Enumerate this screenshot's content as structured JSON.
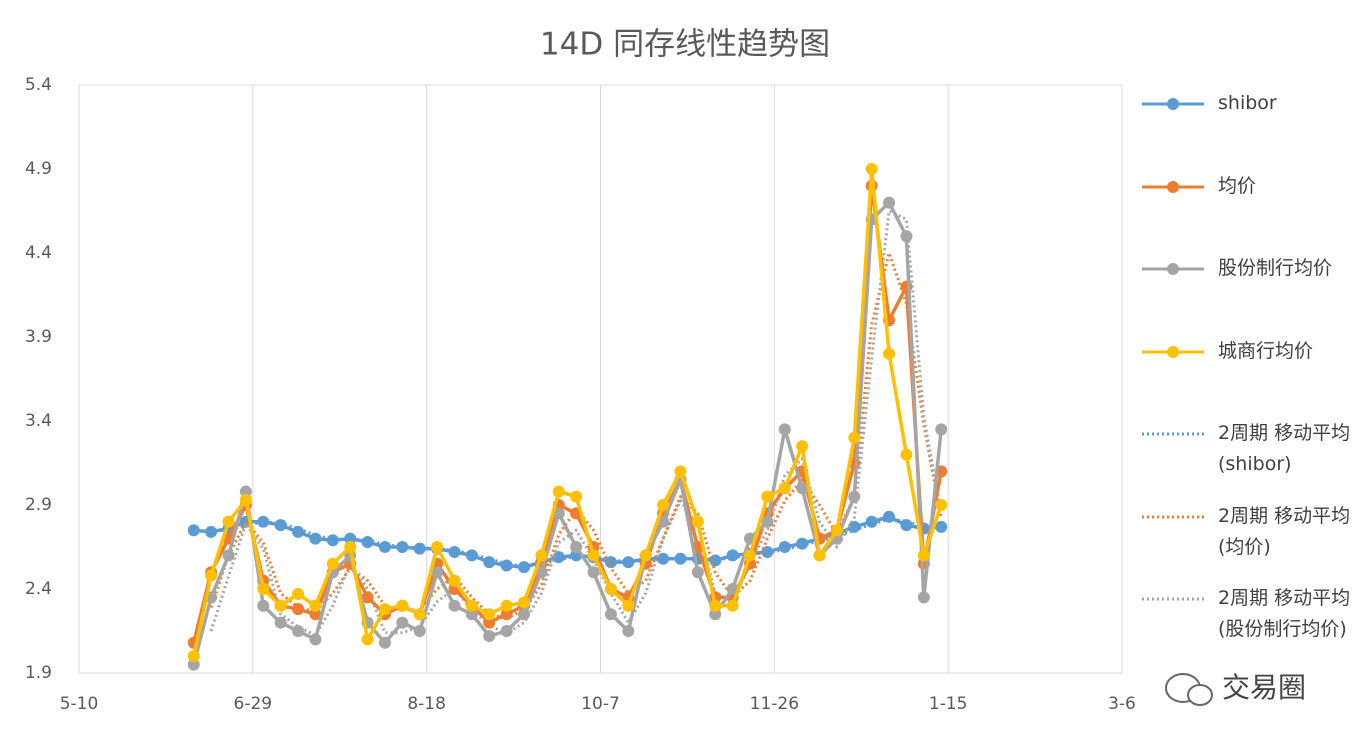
{
  "chart_data": {
    "type": "line",
    "title": "14D 同存线性趋势图",
    "x": [
      "6-12",
      "6-17",
      "6-22",
      "6-27",
      "7-2",
      "7-7",
      "7-12",
      "7-17",
      "7-22",
      "7-27",
      "8-1",
      "8-6",
      "8-11",
      "8-16",
      "8-21",
      "8-26",
      "8-31",
      "9-5",
      "9-10",
      "9-15",
      "9-20",
      "9-25",
      "9-30",
      "10-5",
      "10-10",
      "10-15",
      "10-20",
      "10-25",
      "10-30",
      "11-4",
      "11-9",
      "11-14",
      "11-19",
      "11-24",
      "11-29",
      "12-4",
      "12-9",
      "12-14",
      "12-19",
      "12-24",
      "12-29",
      "1-3",
      "1-8",
      "1-13"
    ],
    "xlim": [
      "5-10",
      "3-6"
    ],
    "xticks": [
      "5-10",
      "6-29",
      "8-18",
      "10-7",
      "11-26",
      "1-15",
      "3-6"
    ],
    "ylim": [
      1.9,
      5.4
    ],
    "yticks": [
      1.9,
      2.4,
      2.9,
      3.4,
      3.9,
      4.4,
      4.9,
      5.4
    ],
    "xgrid": true,
    "series": [
      {
        "name": "shibor",
        "color": "#5b9bd5",
        "style": "solid",
        "values": [
          2.75,
          2.74,
          2.76,
          2.8,
          2.8,
          2.78,
          2.74,
          2.7,
          2.69,
          2.7,
          2.68,
          2.65,
          2.65,
          2.64,
          2.64,
          2.62,
          2.6,
          2.56,
          2.54,
          2.53,
          2.56,
          2.59,
          2.6,
          2.59,
          2.56,
          2.56,
          2.58,
          2.58,
          2.58,
          2.58,
          2.57,
          2.6,
          2.61,
          2.62,
          2.65,
          2.67,
          2.7,
          2.73,
          2.77,
          2.8,
          2.83,
          2.78,
          2.76,
          2.77
        ]
      },
      {
        "name": "均价",
        "color": "#ed7d31",
        "style": "solid",
        "values": [
          2.08,
          2.5,
          2.7,
          2.9,
          2.45,
          2.3,
          2.28,
          2.25,
          2.5,
          2.55,
          2.35,
          2.25,
          2.3,
          2.25,
          2.55,
          2.4,
          2.3,
          2.2,
          2.25,
          2.3,
          2.55,
          2.9,
          2.85,
          2.65,
          2.4,
          2.35,
          2.55,
          2.85,
          3.05,
          2.65,
          2.35,
          2.35,
          2.55,
          2.85,
          3.0,
          3.1,
          2.7,
          2.75,
          3.15,
          4.8,
          4.0,
          4.2,
          2.55,
          3.1
        ]
      },
      {
        "name": "股份制行均价",
        "color": "#a5a5a5",
        "style": "solid",
        "values": [
          1.95,
          2.35,
          2.6,
          2.98,
          2.3,
          2.2,
          2.15,
          2.1,
          2.5,
          2.6,
          2.2,
          2.08,
          2.2,
          2.15,
          2.5,
          2.3,
          2.25,
          2.12,
          2.15,
          2.25,
          2.5,
          2.85,
          2.65,
          2.5,
          2.25,
          2.15,
          2.6,
          2.8,
          3.05,
          2.5,
          2.25,
          2.4,
          2.7,
          2.8,
          3.35,
          3.0,
          2.6,
          2.7,
          2.95,
          4.6,
          4.7,
          4.5,
          2.35,
          3.35
        ]
      },
      {
        "name": "城商行均价",
        "color": "#ffc000",
        "style": "solid",
        "values": [
          2.0,
          2.48,
          2.8,
          2.93,
          2.4,
          2.3,
          2.37,
          2.3,
          2.55,
          2.65,
          2.1,
          2.28,
          2.3,
          2.25,
          2.65,
          2.45,
          2.3,
          2.25,
          2.3,
          2.32,
          2.6,
          2.98,
          2.95,
          2.6,
          2.4,
          2.3,
          2.6,
          2.9,
          3.1,
          2.8,
          2.3,
          2.3,
          2.6,
          2.95,
          3.0,
          3.25,
          2.6,
          2.75,
          3.3,
          4.9,
          3.8,
          3.2,
          2.6,
          2.9
        ]
      },
      {
        "name": "2周期 移动平均 (shibor)",
        "color": "#5b9bd5",
        "style": "dotted",
        "values": [
          null,
          2.745,
          2.75,
          2.78,
          2.8,
          2.79,
          2.76,
          2.72,
          2.695,
          2.695,
          2.69,
          2.665,
          2.65,
          2.645,
          2.64,
          2.63,
          2.61,
          2.58,
          2.55,
          2.535,
          2.545,
          2.575,
          2.595,
          2.595,
          2.575,
          2.56,
          2.57,
          2.58,
          2.58,
          2.58,
          2.575,
          2.585,
          2.605,
          2.615,
          2.635,
          2.66,
          2.685,
          2.715,
          2.75,
          2.785,
          2.815,
          2.805,
          2.77,
          2.765
        ]
      },
      {
        "name": "2周期 移动平均 (均价)",
        "color": "#ed7d31",
        "style": "dotted",
        "values": [
          null,
          2.29,
          2.6,
          2.8,
          2.675,
          2.375,
          2.29,
          2.265,
          2.375,
          2.525,
          2.45,
          2.3,
          2.275,
          2.275,
          2.4,
          2.475,
          2.35,
          2.25,
          2.225,
          2.275,
          2.425,
          2.725,
          2.875,
          2.75,
          2.525,
          2.375,
          2.45,
          2.7,
          2.95,
          2.85,
          2.5,
          2.35,
          2.45,
          2.7,
          2.925,
          3.05,
          2.9,
          2.725,
          2.95,
          3.975,
          4.4,
          4.1,
          3.375,
          2.825
        ]
      },
      {
        "name": "2周期 移动平均 (股份制行均价)",
        "color": "#a5a5a5",
        "style": "dotted",
        "values": [
          null,
          2.15,
          2.475,
          2.79,
          2.64,
          2.25,
          2.175,
          2.125,
          2.3,
          2.55,
          2.4,
          2.14,
          2.14,
          2.175,
          2.325,
          2.4,
          2.275,
          2.185,
          2.135,
          2.2,
          2.375,
          2.675,
          2.75,
          2.575,
          2.375,
          2.2,
          2.375,
          2.7,
          2.925,
          2.775,
          2.375,
          2.325,
          2.55,
          2.75,
          3.075,
          3.175,
          2.8,
          2.65,
          2.825,
          3.775,
          4.65,
          4.6,
          3.425,
          2.85
        ]
      }
    ],
    "watermark": "交易圈"
  }
}
